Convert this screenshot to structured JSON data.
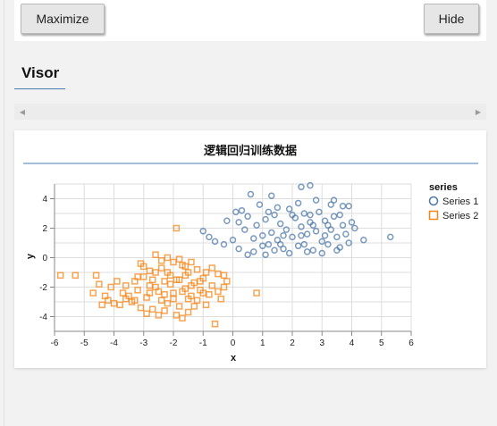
{
  "toolbar": {
    "maximize_label": "Maximize",
    "hide_label": "Hide"
  },
  "panel": {
    "title": "Visor"
  },
  "chart_data": {
    "type": "scatter",
    "title": "逻辑回归训练数据",
    "xlabel": "x",
    "ylabel": "y",
    "xlim": [
      -6,
      6
    ],
    "ylim": [
      -5,
      5
    ],
    "x_ticks": [
      -6,
      -5,
      -4,
      -3,
      -2,
      -1,
      0,
      1,
      2,
      3,
      4,
      5,
      6
    ],
    "y_ticks": [
      -4,
      -2,
      0,
      2,
      4
    ],
    "grid": true,
    "legend_title": "series",
    "legend_position": "right",
    "series": [
      {
        "name": "Series 1",
        "marker": "circle",
        "color": "#4c78a8",
        "points": [
          [
            0.6,
            4.3
          ],
          [
            1.3,
            4.2
          ],
          [
            2.3,
            4.8
          ],
          [
            2.6,
            4.9
          ],
          [
            3.4,
            3.9
          ],
          [
            3.7,
            3.5
          ],
          [
            -0.2,
            2.5
          ],
          [
            0.1,
            3.1
          ],
          [
            0.3,
            3.2
          ],
          [
            -1.0,
            1.8
          ],
          [
            -0.6,
            1.1
          ],
          [
            -0.3,
            0.9
          ],
          [
            0.2,
            0.6
          ],
          [
            0.5,
            0.2
          ],
          [
            0.7,
            0.4
          ],
          [
            0.8,
            2.2
          ],
          [
            1.0,
            1.5
          ],
          [
            1.1,
            2.6
          ],
          [
            1.2,
            0.9
          ],
          [
            1.3,
            1.7
          ],
          [
            1.4,
            2.9
          ],
          [
            1.5,
            1.2
          ],
          [
            1.6,
            2.3
          ],
          [
            1.7,
            0.6
          ],
          [
            1.8,
            1.9
          ],
          [
            1.9,
            3.3
          ],
          [
            2.0,
            1.4
          ],
          [
            2.1,
            2.7
          ],
          [
            2.2,
            0.8
          ],
          [
            2.3,
            2.1
          ],
          [
            2.4,
            3.0
          ],
          [
            2.5,
            1.6
          ],
          [
            2.6,
            2.4
          ],
          [
            2.7,
            0.5
          ],
          [
            2.8,
            1.8
          ],
          [
            2.9,
            3.1
          ],
          [
            3.0,
            1.1
          ],
          [
            3.1,
            2.5
          ],
          [
            3.2,
            0.9
          ],
          [
            3.3,
            1.9
          ],
          [
            3.4,
            2.8
          ],
          [
            3.5,
            1.4
          ],
          [
            3.6,
            0.7
          ],
          [
            3.7,
            2.2
          ],
          [
            3.8,
            1.6
          ],
          [
            3.9,
            3.5
          ],
          [
            4.0,
            2.4
          ],
          [
            4.1,
            2.0
          ],
          [
            4.4,
            1.2
          ],
          [
            5.3,
            1.4
          ],
          [
            0.9,
            3.6
          ],
          [
            1.5,
            3.4
          ],
          [
            2.2,
            3.7
          ],
          [
            2.8,
            3.9
          ],
          [
            3.3,
            3.6
          ],
          [
            0.4,
            1.9
          ],
          [
            0.7,
            1.3
          ],
          [
            1.9,
            0.3
          ],
          [
            2.5,
            0.4
          ],
          [
            3.0,
            0.3
          ],
          [
            -0.8,
            1.4
          ],
          [
            0.2,
            2.4
          ],
          [
            1.1,
            0.2
          ],
          [
            1.4,
            0.5
          ],
          [
            2.0,
            2.9
          ],
          [
            2.6,
            2.9
          ],
          [
            3.6,
            2.9
          ],
          [
            3.9,
            1.0
          ],
          [
            0.0,
            1.2
          ],
          [
            1.7,
            1.5
          ],
          [
            2.3,
            1.5
          ],
          [
            3.1,
            1.5
          ],
          [
            0.5,
            2.8
          ],
          [
            1.2,
            3.1
          ],
          [
            2.7,
            2.2
          ],
          [
            3.2,
            2.2
          ],
          [
            1.0,
            0.8
          ],
          [
            1.6,
            0.9
          ],
          [
            2.4,
            0.9
          ],
          [
            3.5,
            0.5
          ]
        ]
      },
      {
        "name": "Series 2",
        "marker": "square",
        "color": "#f58518",
        "points": [
          [
            -5.8,
            -1.2
          ],
          [
            -5.3,
            -1.2
          ],
          [
            -4.6,
            -1.2
          ],
          [
            -4.5,
            -1.8
          ],
          [
            -4.7,
            -2.4
          ],
          [
            -4.4,
            -3.2
          ],
          [
            -4.2,
            -2.9
          ],
          [
            -4.0,
            -3.1
          ],
          [
            -3.7,
            -2.4
          ],
          [
            -3.6,
            -1.9
          ],
          [
            -3.5,
            -2.6
          ],
          [
            -3.4,
            -3.0
          ],
          [
            -3.3,
            -1.6
          ],
          [
            -3.2,
            -2.2
          ],
          [
            -3.1,
            -0.4
          ],
          [
            -3.0,
            -1.3
          ],
          [
            -2.9,
            -2.7
          ],
          [
            -2.8,
            -1.9
          ],
          [
            -2.7,
            -3.5
          ],
          [
            -2.6,
            -1.0
          ],
          [
            -2.5,
            -2.3
          ],
          [
            -2.4,
            -0.7
          ],
          [
            -2.3,
            -1.6
          ],
          [
            -2.2,
            -3.1
          ],
          [
            -2.1,
            -1.2
          ],
          [
            -2.0,
            -2.4
          ],
          [
            -1.9,
            2.0
          ],
          [
            -1.8,
            -1.5
          ],
          [
            -1.7,
            -0.5
          ],
          [
            -1.6,
            -2.1
          ],
          [
            -1.5,
            -1.0
          ],
          [
            -1.4,
            -2.6
          ],
          [
            -1.3,
            -1.7
          ],
          [
            -1.2,
            -0.8
          ],
          [
            -1.1,
            -2.2
          ],
          [
            -1.0,
            -1.4
          ],
          [
            -0.9,
            -3.2
          ],
          [
            -0.8,
            -2.5
          ],
          [
            -0.7,
            -1.9
          ],
          [
            -0.6,
            -4.5
          ],
          [
            -0.5,
            -1.1
          ],
          [
            -0.4,
            -2.8
          ],
          [
            -0.3,
            -2.0
          ],
          [
            -0.2,
            -1.6
          ],
          [
            0.8,
            -2.4
          ],
          [
            -3.0,
            -0.6
          ],
          [
            -2.8,
            -0.9
          ],
          [
            -2.6,
            0.2
          ],
          [
            -2.4,
            -0.2
          ],
          [
            -2.2,
            0.0
          ],
          [
            -2.0,
            -0.3
          ],
          [
            -1.8,
            -0.1
          ],
          [
            -1.6,
            -0.6
          ],
          [
            -1.4,
            -0.3
          ],
          [
            -3.3,
            -2.9
          ],
          [
            -3.1,
            -3.4
          ],
          [
            -2.9,
            -3.8
          ],
          [
            -2.5,
            -3.9
          ],
          [
            -2.3,
            -3.6
          ],
          [
            -1.9,
            -3.9
          ],
          [
            -1.7,
            -4.1
          ],
          [
            -1.5,
            -3.7
          ],
          [
            -1.3,
            -3.3
          ],
          [
            -3.8,
            -3.2
          ],
          [
            -4.1,
            -2.0
          ],
          [
            -3.9,
            -1.6
          ],
          [
            -2.7,
            -1.5
          ],
          [
            -2.1,
            -1.8
          ],
          [
            -1.6,
            -1.2
          ],
          [
            -1.1,
            -1.6
          ],
          [
            -0.9,
            -1.0
          ],
          [
            -0.7,
            -0.7
          ],
          [
            -2.4,
            -2.9
          ],
          [
            -2.0,
            -2.8
          ],
          [
            -1.8,
            -3.3
          ],
          [
            -1.2,
            -2.9
          ],
          [
            -3.2,
            -1.3
          ],
          [
            -2.6,
            -2.0
          ],
          [
            -2.3,
            -2.5
          ],
          [
            -1.9,
            -1.5
          ],
          [
            -1.4,
            -1.9
          ],
          [
            -1.0,
            -2.4
          ],
          [
            -0.5,
            -2.3
          ],
          [
            -3.6,
            -2.8
          ],
          [
            -2.2,
            -1.0
          ],
          [
            -1.7,
            -2.3
          ],
          [
            -2.8,
            -2.4
          ],
          [
            -1.5,
            -2.8
          ],
          [
            -0.3,
            -1.2
          ],
          [
            -4.3,
            -2.6
          ]
        ]
      }
    ]
  }
}
